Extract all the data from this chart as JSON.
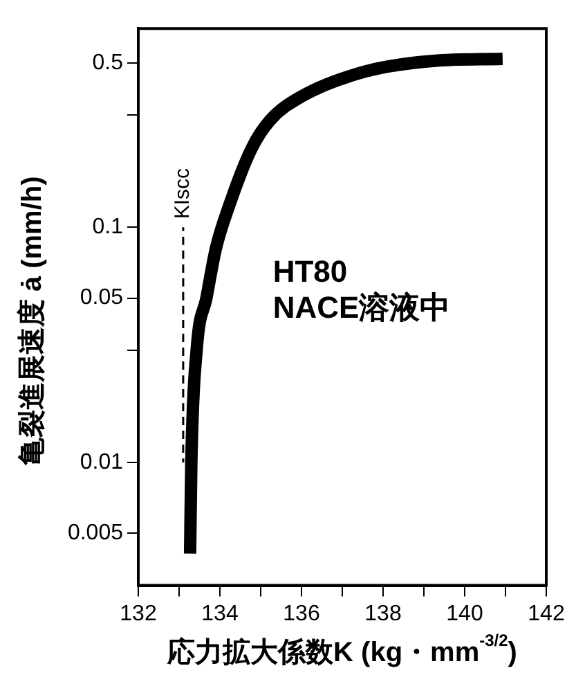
{
  "chart_data": {
    "type": "line",
    "xlabel": "応力拡大係数K (kg・mm$^{-3/2}$)",
    "ylabel": "亀裂進展速度 ȧ (mm/h)",
    "annotations": [
      "HT80\nNACE溶液中"
    ],
    "log": "y",
    "grid": false,
    "marker": "none",
    "xlim": [
      132,
      142
    ],
    "xticks": [
      132,
      {
        "value": 133,
        "label": null
      },
      134,
      {
        "value": 135,
        "label": null
      },
      136,
      {
        "value": 137,
        "label": null
      },
      138,
      {
        "value": 139,
        "label": null
      },
      140,
      {
        "value": 141,
        "label": null
      },
      142
    ],
    "ylim": [
      0.003,
      0.7
    ],
    "yticks": [
      0.005,
      0.01,
      {
        "value": 0.03,
        "label": null
      },
      0.05,
      0.1,
      {
        "value": 0.3,
        "label": null
      },
      0.5
    ],
    "series": [
      {
        "color": "#000000",
        "line_style": "solid",
        "x": [
          133.27,
          133.3,
          133.43,
          133.67,
          133.9,
          134.23,
          134.77,
          135.23,
          136.0,
          137.57,
          139.23,
          140.93
        ],
        "values": [
          0.0041,
          0.01,
          0.03,
          0.05,
          0.081,
          0.124,
          0.215,
          0.285,
          0.36,
          0.46,
          0.51,
          0.52
        ]
      },
      {
        "name": "KIscc",
        "color": "#000000",
        "line_style": "dashed",
        "x": [
          133.1,
          133.1
        ],
        "values": [
          0.01,
          0.1
        ]
      }
    ]
  }
}
